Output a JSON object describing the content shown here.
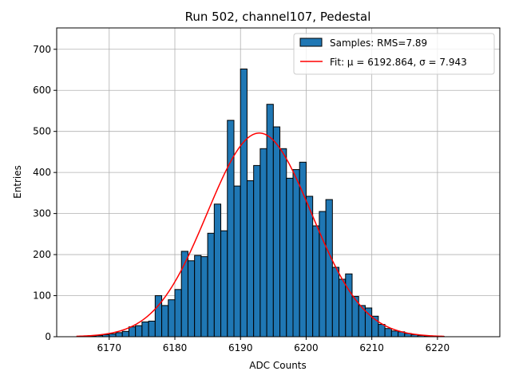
{
  "chart_data": {
    "type": "bar",
    "title": "Run 502, channel107, Pedestal",
    "xlabel": "ADC Counts",
    "ylabel": "Entries",
    "xlim": [
      6162.0,
      6229.5
    ],
    "ylim": [
      0,
      752
    ],
    "grid": true,
    "legend_position": "top-right",
    "xticks": [
      6170,
      6180,
      6190,
      6200,
      6210,
      6220
    ],
    "yticks": [
      0,
      100,
      200,
      300,
      400,
      500,
      600,
      700
    ],
    "bar_color": "#1f77b4",
    "fit_color": "#ff0000",
    "histogram": {
      "name": "Samples: RMS=7.89",
      "bin_width": 1,
      "bin_starts": [
        6166,
        6167,
        6168,
        6169,
        6170,
        6171,
        6172,
        6173,
        6174,
        6175,
        6176,
        6177,
        6178,
        6179,
        6180,
        6181,
        6182,
        6183,
        6184,
        6185,
        6186,
        6187,
        6188,
        6189,
        6190,
        6191,
        6192,
        6193,
        6194,
        6195,
        6196,
        6197,
        6198,
        6199,
        6200,
        6201,
        6202,
        6203,
        6204,
        6205,
        6206,
        6207,
        6208,
        6209,
        6210,
        6211,
        6212,
        6213,
        6214,
        6215,
        6216,
        6217,
        6218,
        6219,
        6220
      ],
      "counts": [
        1,
        2,
        3,
        5,
        7,
        10,
        13,
        24,
        27,
        36,
        38,
        100,
        76,
        90,
        115,
        208,
        185,
        198,
        195,
        252,
        323,
        258,
        527,
        367,
        652,
        380,
        417,
        458,
        566,
        511,
        458,
        386,
        407,
        425,
        342,
        270,
        305,
        334,
        169,
        140,
        153,
        98,
        76,
        70,
        50,
        30,
        20,
        14,
        12,
        8,
        5,
        3,
        2,
        1,
        1
      ]
    },
    "fit": {
      "name": "Fit: μ = 6192.864, σ = 7.943",
      "mu": 6192.864,
      "sigma": 7.943,
      "amplitude": 496,
      "x_range": [
        6165,
        6221
      ]
    }
  }
}
